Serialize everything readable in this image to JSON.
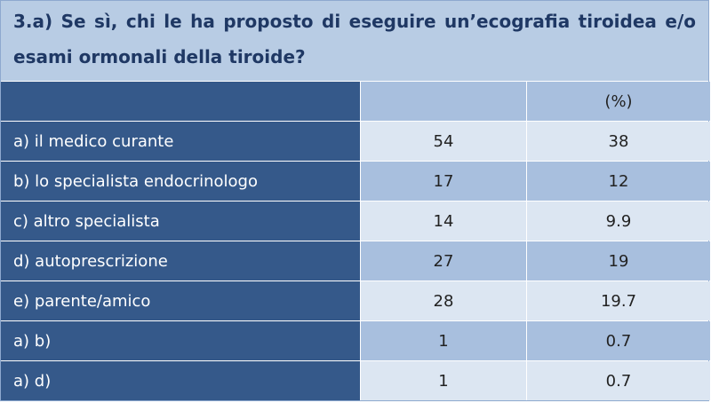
{
  "title": "3.a) Se sì, chi le ha proposto di eseguire un’ecografia tiroidea e/o esami ormonali della tiroide?",
  "header": {
    "col0": "",
    "col1": "",
    "col2": "(%)"
  },
  "rows": [
    {
      "label": "a) il medico curante",
      "n": "54",
      "pct": "38"
    },
    {
      "label": "b) lo specialista endocrinologo",
      "n": "17",
      "pct": "12"
    },
    {
      "label": "c) altro specialista",
      "n": "14",
      "pct": "9.9"
    },
    {
      "label": "d) autoprescrizione",
      "n": "27",
      "pct": "19"
    },
    {
      "label": "e) parente/amico",
      "n": "28",
      "pct": "19.7"
    },
    {
      "label": "a) b)",
      "n": "1",
      "pct": "0.7"
    },
    {
      "label": "a) d)",
      "n": "1",
      "pct": "0.7"
    }
  ],
  "colors": {
    "title_bg": "#b8cce4",
    "title_text": "#1f3864",
    "label_bg": "#35598a",
    "band_light": "#dce6f2",
    "band_dark": "#a8bfde"
  }
}
